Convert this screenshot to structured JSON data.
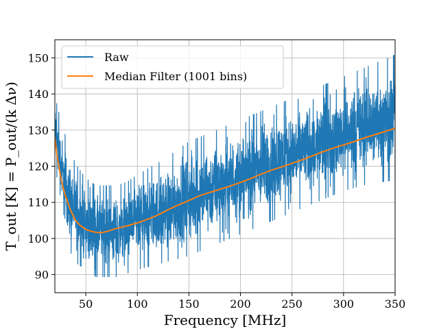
{
  "chart_data": {
    "type": "line",
    "xlabel": "Frequency [MHz]",
    "ylabel": "T_out [K] = P_out/(k Δν)",
    "xlim": [
      20,
      350
    ],
    "ylim": [
      85,
      155
    ],
    "xticks": [
      50,
      100,
      150,
      200,
      250,
      300,
      350
    ],
    "yticks": [
      90,
      100,
      110,
      120,
      130,
      140,
      150
    ],
    "grid": true,
    "legend_position": "top-left",
    "series": [
      {
        "name": "Raw",
        "color": "#1f77b4",
        "style": "noisy band",
        "x": [
          20,
          25,
          30,
          35,
          40,
          50,
          60,
          70,
          80,
          90,
          100,
          125,
          150,
          175,
          200,
          225,
          250,
          275,
          300,
          325,
          350
        ],
        "y_lower": [
          122,
          110,
          100,
          97,
          94,
          92,
          90,
          90,
          90,
          91,
          92,
          94,
          96,
          99,
          102,
          105,
          108,
          111,
          114,
          116,
          117
        ],
        "y_upper": [
          139,
          133,
          128,
          124,
          120,
          116,
          114,
          114,
          114,
          115,
          117,
          121,
          126,
          129,
          132,
          135,
          138,
          141,
          144,
          147,
          150
        ]
      },
      {
        "name": "Median Filter (1001 bins)",
        "color": "#ff7f0e",
        "x": [
          20,
          22,
          25,
          28,
          30,
          35,
          40,
          45,
          50,
          55,
          60,
          65,
          70,
          80,
          90,
          100,
          110,
          120,
          130,
          140,
          150,
          160,
          170,
          180,
          190,
          200,
          210,
          220,
          230,
          240,
          250,
          260,
          270,
          280,
          290,
          300,
          310,
          320,
          330,
          340,
          350
        ],
        "y": [
          128,
          123,
          118,
          114,
          112,
          108,
          105,
          103.5,
          102.5,
          102,
          101.7,
          101.6,
          101.9,
          102.8,
          103.5,
          104.3,
          105.3,
          106.5,
          108,
          109.3,
          110.5,
          111.8,
          112.7,
          113.6,
          114.5,
          115.5,
          116.6,
          117.8,
          118.9,
          119.8,
          120.8,
          121.8,
          122.9,
          124,
          125,
          125.9,
          126.8,
          127.8,
          128.7,
          129.6,
          130.5
        ]
      }
    ]
  }
}
